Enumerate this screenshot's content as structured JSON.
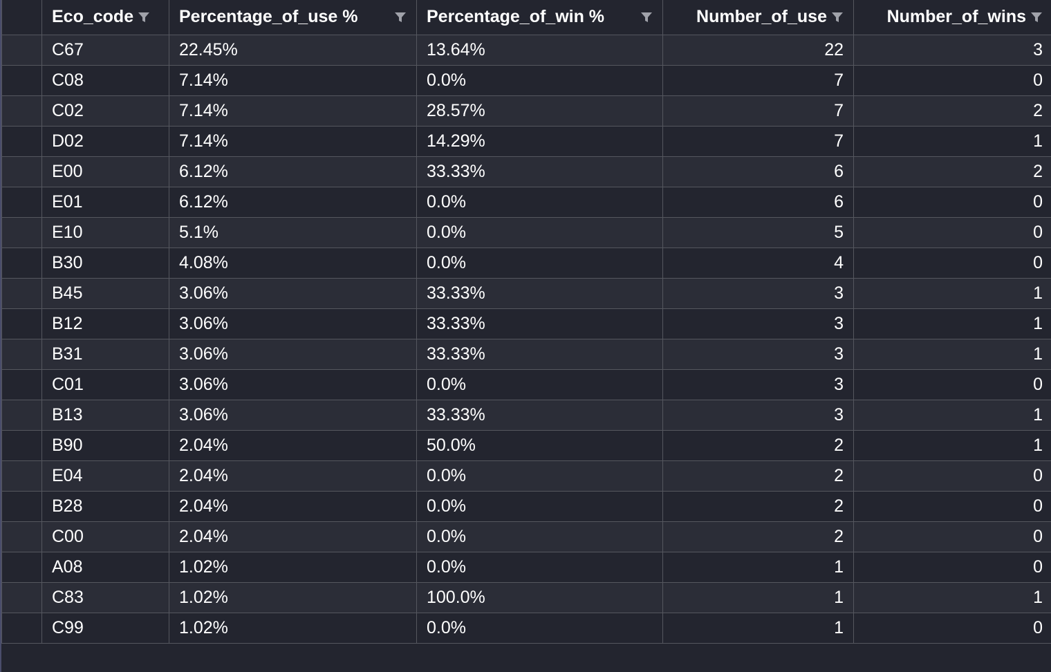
{
  "columns": [
    {
      "label": "",
      "align": "left"
    },
    {
      "label": "Eco_code",
      "align": "left",
      "icon": "filter-icon"
    },
    {
      "label": "Percentage_of_use %",
      "align": "left",
      "icon": "filter-icon"
    },
    {
      "label": "Percentage_of_win %",
      "align": "left",
      "icon": "filter-icon"
    },
    {
      "label": "Number_of_use",
      "align": "right",
      "icon": "filter-icon"
    },
    {
      "label": "Number_of_wins",
      "align": "right",
      "icon": "filter-icon"
    }
  ],
  "rows": [
    [
      "C67",
      "22.45%",
      "13.64%",
      "22",
      "3"
    ],
    [
      "C08",
      "7.14%",
      "0.0%",
      "7",
      "0"
    ],
    [
      "C02",
      "7.14%",
      "28.57%",
      "7",
      "2"
    ],
    [
      "D02",
      "7.14%",
      "14.29%",
      "7",
      "1"
    ],
    [
      "E00",
      "6.12%",
      "33.33%",
      "6",
      "2"
    ],
    [
      "E01",
      "6.12%",
      "0.0%",
      "6",
      "0"
    ],
    [
      "E10",
      "5.1%",
      "0.0%",
      "5",
      "0"
    ],
    [
      "B30",
      "4.08%",
      "0.0%",
      "4",
      "0"
    ],
    [
      "B45",
      "3.06%",
      "33.33%",
      "3",
      "1"
    ],
    [
      "B12",
      "3.06%",
      "33.33%",
      "3",
      "1"
    ],
    [
      "B31",
      "3.06%",
      "33.33%",
      "3",
      "1"
    ],
    [
      "C01",
      "3.06%",
      "0.0%",
      "3",
      "0"
    ],
    [
      "B13",
      "3.06%",
      "33.33%",
      "3",
      "1"
    ],
    [
      "B90",
      "2.04%",
      "50.0%",
      "2",
      "1"
    ],
    [
      "E04",
      "2.04%",
      "0.0%",
      "2",
      "0"
    ],
    [
      "B28",
      "2.04%",
      "0.0%",
      "2",
      "0"
    ],
    [
      "C00",
      "2.04%",
      "0.0%",
      "2",
      "0"
    ],
    [
      "A08",
      "1.02%",
      "0.0%",
      "1",
      "0"
    ],
    [
      "C83",
      "1.02%",
      "100.0%",
      "1",
      "1"
    ],
    [
      "C99",
      "1.02%",
      "0.0%",
      "1",
      "0"
    ]
  ],
  "colors": {
    "background": "#23252f",
    "row_alt": "#2b2d37",
    "border": "#55575f",
    "text": "#ffffff",
    "icon": "#a0a2aa"
  }
}
